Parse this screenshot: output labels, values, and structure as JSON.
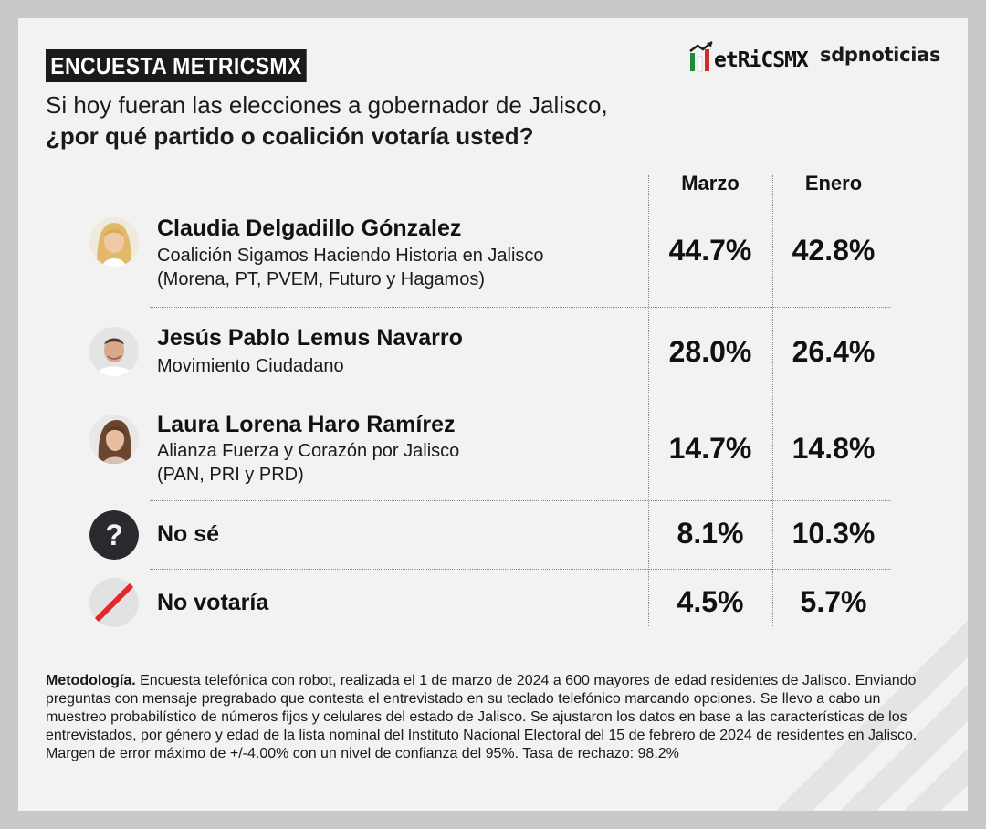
{
  "header": {
    "badge": "ENCUESTA METRICSMX",
    "brand_metrics": "etRiCSMX",
    "brand_sdp": "sdpnoticias"
  },
  "question": {
    "line1": "Si hoy fueran las elecciones a gobernador de Jalisco,",
    "line2": "¿por qué partido o coalición votaría usted?"
  },
  "chart_data": {
    "type": "table",
    "columns": [
      "Marzo",
      "Enero"
    ],
    "rows": [
      {
        "name": "Claudia Delgadillo Gónzalez",
        "sub1": "Coalición Sigamos Haciendo Historia en Jalisco",
        "sub2": "(Morena, PT, PVEM, Futuro y Hagamos)",
        "icon": "candidate-photo-woman",
        "values": [
          "44.7%",
          "42.8%"
        ]
      },
      {
        "name": "Jesús Pablo Lemus Navarro",
        "sub1": "Movimiento Ciudadano",
        "sub2": "",
        "icon": "candidate-photo-man",
        "values": [
          "28.0%",
          "26.4%"
        ]
      },
      {
        "name": "Laura Lorena Haro Ramírez",
        "sub1": "Alianza Fuerza y Corazón por Jalisco",
        "sub2": "(PAN, PRI y PRD)",
        "icon": "candidate-photo-woman",
        "values": [
          "14.7%",
          "14.8%"
        ]
      },
      {
        "name": "No sé",
        "sub1": "",
        "sub2": "",
        "icon": "question-icon",
        "values": [
          "8.1%",
          "10.3%"
        ]
      },
      {
        "name": "No votaría",
        "sub1": "",
        "sub2": "",
        "icon": "slash-icon",
        "values": [
          "4.5%",
          "5.7%"
        ]
      }
    ]
  },
  "methodology": {
    "label": "Metodología.",
    "text": " Encuesta telefónica con robot, realizada el 1 de marzo de 2024 a 600 mayores de edad residentes de Jalisco. Enviando preguntas con mensaje pregrabado que contesta el entrevistado en su teclado telefónico marcando opciones. Se llevo a cabo un muestreo probabilístico de números fijos y celulares del estado de Jalisco. Se ajustaron los datos en base a las características de los entrevistados, por género y edad de la lista nominal del Instituto Nacional Electoral del 15 de febrero de 2024 de residentes en Jalisco. Margen de error máximo de +/-4.00% con un nivel de confianza del 95%. Tasa de rechazo: 98.2%"
  },
  "colors": {
    "dark": "#1a1a1a",
    "slash_red": "#e3262b",
    "flag_green": "#1f8a3b",
    "flag_red": "#d42a2a"
  }
}
